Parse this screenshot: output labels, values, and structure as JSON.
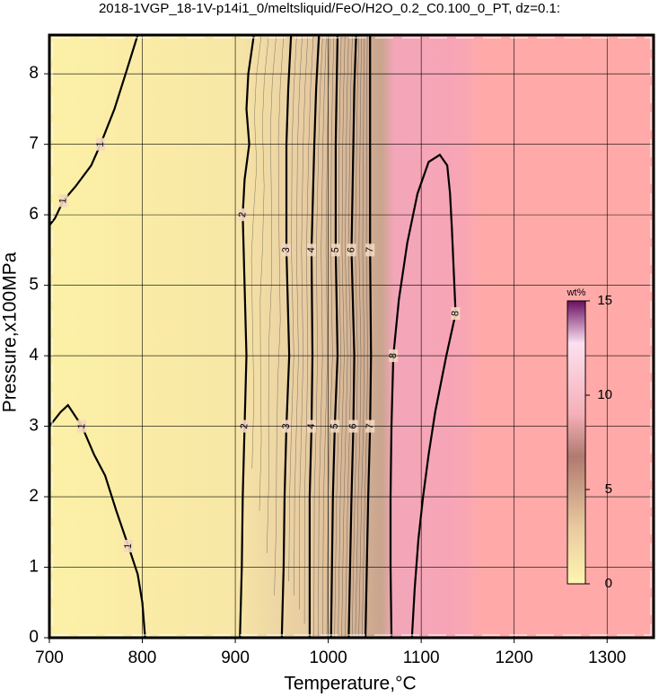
{
  "chart_data": {
    "type": "contour",
    "title": "2018-1VGP_18-1V-p14i1_0/meltsliquid/FeO/H2O_0.2_C0.100_0_PT, dz=0.1:",
    "x_label": "Temperature,°C",
    "y_label": "Pressure,x100MPa",
    "xlim": [
      700,
      1350
    ],
    "ylim": [
      0,
      8.55
    ],
    "xticks": [
      700,
      800,
      900,
      1000,
      1100,
      1200,
      1300
    ],
    "yticks": [
      0,
      1,
      2,
      3,
      4,
      5,
      6,
      7,
      8
    ],
    "grid": true,
    "colorbar": {
      "label": "wt%",
      "lim": [
        0,
        15
      ],
      "ticks": [
        0,
        5,
        10,
        15
      ]
    },
    "contours": [
      {
        "level": 1,
        "x": [
          795,
          782,
          770,
          755,
          745,
          728,
          715,
          706,
          700
        ],
        "y": [
          8.55,
          8.0,
          7.5,
          7.0,
          6.7,
          6.4,
          6.2,
          5.95,
          5.85
        ]
      },
      {
        "level": 1,
        "x": [
          700,
          712,
          720,
          735,
          748,
          760,
          772,
          785,
          795,
          800,
          803
        ],
        "y": [
          3.0,
          3.2,
          3.3,
          3.0,
          2.6,
          2.3,
          1.8,
          1.3,
          0.9,
          0.5,
          0
        ]
      },
      {
        "level": 2,
        "x": [
          920,
          914,
          912,
          915,
          910,
          908,
          910,
          912,
          910,
          908,
          907,
          905
        ],
        "y": [
          8.55,
          8.0,
          7.5,
          7.0,
          6.5,
          6.0,
          5.0,
          4.0,
          3.0,
          2.0,
          1.0,
          0
        ]
      },
      {
        "level": 3,
        "x": [
          960,
          957,
          955,
          955,
          958,
          955,
          953,
          952,
          950
        ],
        "y": [
          8.55,
          7.8,
          7.0,
          5.5,
          4.0,
          3.0,
          2.0,
          1.0,
          0
        ]
      },
      {
        "level": 4,
        "x": [
          990,
          987,
          985,
          982,
          983,
          982,
          980,
          980
        ],
        "y": [
          8.55,
          7.8,
          7.0,
          5.5,
          4.0,
          3.0,
          2.0,
          0
        ]
      },
      {
        "level": 5,
        "x": [
          1010,
          1009,
          1008,
          1008,
          1010,
          1007,
          1005,
          1003
        ],
        "y": [
          8.55,
          7.8,
          7.0,
          5.5,
          4.0,
          3.0,
          2.0,
          0
        ]
      },
      {
        "level": 6,
        "x": [
          1030,
          1028,
          1027,
          1025,
          1028,
          1027,
          1025,
          1022
        ],
        "y": [
          8.55,
          7.8,
          7.0,
          5.5,
          4.0,
          3.0,
          2.0,
          0
        ]
      },
      {
        "level": 7,
        "x": [
          1045,
          1045,
          1045,
          1045,
          1046,
          1045,
          1043,
          1040
        ],
        "y": [
          8.55,
          7.8,
          7.0,
          5.5,
          4.0,
          3.0,
          2.0,
          0
        ]
      },
      {
        "level": 8,
        "x": [
          1068,
          1067,
          1067,
          1068,
          1070,
          1076,
          1085,
          1096,
          1108,
          1120,
          1128,
          1131,
          1133,
          1137,
          1127,
          1115,
          1108,
          1102,
          1097,
          1093,
          1090
        ],
        "y": [
          0,
          1.0,
          2.0,
          3.0,
          4.0,
          4.8,
          5.6,
          6.3,
          6.75,
          6.85,
          6.7,
          6.3,
          5.8,
          4.6,
          4.0,
          3.2,
          2.6,
          2.0,
          1.4,
          0.7,
          0
        ]
      }
    ]
  }
}
